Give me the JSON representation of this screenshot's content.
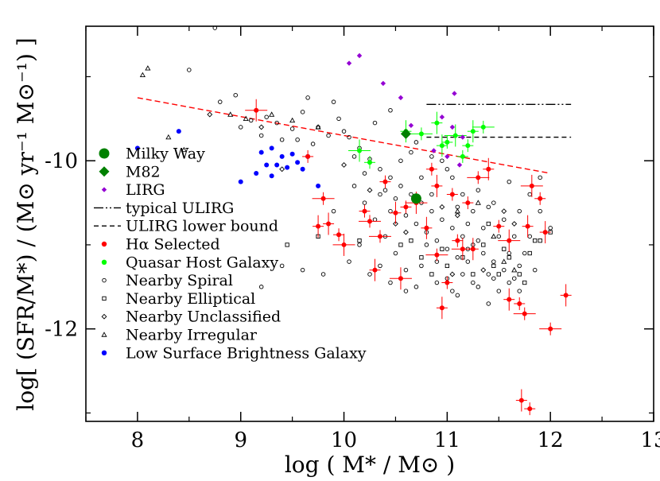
{
  "chart_data": {
    "type": "scatter",
    "xlabel": "log ( M* / M⊙ )",
    "ylabel": "log[ (SFR/M*) / (M⊙ yr⁻¹ M⊙⁻¹) ]",
    "xlim": [
      7.5,
      13
    ],
    "ylim": [
      -13.1,
      -8.4
    ],
    "x_ticks": [
      8,
      9,
      10,
      11,
      12,
      13
    ],
    "y_ticks": [
      -10,
      -12
    ],
    "grid": false,
    "legend_position": "left",
    "legend": [
      {
        "label": "Milky Way",
        "marker": "circle-large",
        "color": "#008000"
      },
      {
        "label": "M82",
        "marker": "diamond-large",
        "color": "#008000"
      },
      {
        "label": "LIRG",
        "marker": "diamond",
        "color": "#9400d3"
      },
      {
        "label": "typical ULIRG",
        "marker": "dash-dot-dot-line",
        "color": "#000000"
      },
      {
        "label": "ULIRG lower bound",
        "marker": "dashed-line",
        "color": "#000000"
      },
      {
        "label": "Hα Selected",
        "marker": "dot",
        "color": "#ff0000"
      },
      {
        "label": "Quasar Host Galaxy",
        "marker": "dot",
        "color": "#00ff00"
      },
      {
        "label": "Nearby Spiral",
        "marker": "open-circle",
        "color": "#000000"
      },
      {
        "label": "Nearby Elliptical",
        "marker": "open-square",
        "color": "#000000"
      },
      {
        "label": "Nearby Unclassified",
        "marker": "open-diamond",
        "color": "#000000"
      },
      {
        "label": "Nearby Irregular",
        "marker": "open-triangle",
        "color": "#000000"
      },
      {
        "label": "Low Surface Brightness Galaxy",
        "marker": "dot",
        "color": "#0000ff"
      }
    ],
    "lines": [
      {
        "style": "dashed",
        "color": "#ff0000",
        "points": [
          [
            8.0,
            -9.25
          ],
          [
            12.0,
            -10.15
          ]
        ]
      },
      {
        "label": "typical ULIRG",
        "style": "dash-dot-dot",
        "color": "#000000",
        "points": [
          [
            10.8,
            -9.33
          ],
          [
            12.2,
            -9.33
          ]
        ]
      },
      {
        "label": "ULIRG lower bound",
        "style": "dashed",
        "color": "#000000",
        "points": [
          [
            10.8,
            -9.72
          ],
          [
            12.2,
            -9.72
          ]
        ]
      }
    ],
    "series": [
      {
        "label": "Milky Way",
        "marker": "circle-large",
        "color": "#008000",
        "points": [
          [
            10.7,
            -10.45
          ]
        ]
      },
      {
        "label": "M82",
        "marker": "diamond-large",
        "color": "#008000",
        "points": [
          [
            10.6,
            -9.68
          ]
        ]
      },
      {
        "label": "LIRG",
        "marker": "diamond",
        "color": "#9400d3",
        "points": [
          [
            10.05,
            -8.84
          ],
          [
            10.15,
            -8.75
          ],
          [
            10.38,
            -9.08
          ],
          [
            10.55,
            -9.25
          ],
          [
            10.65,
            -9.58
          ],
          [
            10.95,
            -9.48
          ],
          [
            11.05,
            -9.6
          ],
          [
            11.15,
            -9.72
          ],
          [
            11.07,
            -9.2
          ],
          [
            10.87,
            -9.88
          ],
          [
            11.12,
            -10.05
          ],
          [
            11.0,
            -9.95
          ]
        ]
      },
      {
        "label": "Quasar Host Galaxy",
        "marker": "dot",
        "color": "#00ff00",
        "points": [
          [
            10.15,
            -9.88
          ],
          [
            10.25,
            -10.02
          ],
          [
            10.6,
            -9.65
          ],
          [
            10.75,
            -9.68
          ],
          [
            10.9,
            -9.55
          ],
          [
            11.0,
            -9.78
          ],
          [
            11.08,
            -9.7
          ],
          [
            11.15,
            -9.95
          ],
          [
            11.25,
            -9.65
          ],
          [
            11.35,
            -9.6
          ],
          [
            10.95,
            -9.82
          ],
          [
            11.2,
            -9.82
          ]
        ],
        "error_bars": true
      },
      {
        "label": "Hα Selected",
        "marker": "dot",
        "color": "#ff0000",
        "points": [
          [
            9.15,
            -9.4
          ],
          [
            9.65,
            -9.95
          ],
          [
            9.75,
            -10.78
          ],
          [
            9.8,
            -10.45
          ],
          [
            9.85,
            -10.75
          ],
          [
            9.95,
            -10.88
          ],
          [
            10.0,
            -11.0
          ],
          [
            10.2,
            -10.6
          ],
          [
            10.3,
            -11.3
          ],
          [
            10.35,
            -10.9
          ],
          [
            10.5,
            -10.62
          ],
          [
            10.6,
            -10.55
          ],
          [
            10.7,
            -10.5
          ],
          [
            10.85,
            -10.1
          ],
          [
            10.9,
            -10.3
          ],
          [
            10.9,
            -11.12
          ],
          [
            10.95,
            -11.75
          ],
          [
            11.1,
            -10.95
          ],
          [
            11.15,
            -11.05
          ],
          [
            11.2,
            -10.5
          ],
          [
            11.25,
            -11.05
          ],
          [
            11.3,
            -10.2
          ],
          [
            11.4,
            -10.1
          ],
          [
            11.5,
            -10.78
          ],
          [
            11.6,
            -10.95
          ],
          [
            11.7,
            -11.7
          ],
          [
            11.72,
            -12.85
          ],
          [
            11.75,
            -11.82
          ],
          [
            11.78,
            -10.78
          ],
          [
            11.8,
            -12.95
          ],
          [
            11.82,
            -10.3
          ],
          [
            11.9,
            -10.45
          ],
          [
            11.95,
            -10.85
          ],
          [
            12.0,
            -12.0
          ],
          [
            12.15,
            -11.6
          ],
          [
            10.4,
            -10.25
          ],
          [
            10.55,
            -11.4
          ],
          [
            11.0,
            -11.45
          ],
          [
            11.6,
            -11.65
          ],
          [
            10.25,
            -10.72
          ],
          [
            10.8,
            -10.8
          ],
          [
            11.05,
            -10.4
          ]
        ],
        "error_bars": true
      },
      {
        "label": "Low Surface Brightness Galaxy",
        "marker": "dot",
        "color": "#0000ff",
        "points": [
          [
            8.0,
            -9.85
          ],
          [
            8.4,
            -9.65
          ],
          [
            9.0,
            -10.25
          ],
          [
            9.15,
            -10.15
          ],
          [
            9.25,
            -10.05
          ],
          [
            9.3,
            -10.18
          ],
          [
            9.35,
            -10.05
          ],
          [
            9.4,
            -9.95
          ],
          [
            9.45,
            -10.08
          ],
          [
            9.5,
            -9.92
          ],
          [
            9.55,
            -10.02
          ],
          [
            9.6,
            -10.1
          ],
          [
            9.65,
            -9.95
          ],
          [
            9.75,
            -10.3
          ],
          [
            9.3,
            -9.85
          ],
          [
            9.2,
            -9.9
          ]
        ]
      },
      {
        "label": "Nearby Spiral",
        "marker": "open-circle",
        "color": "#000000",
        "points": [
          [
            8.5,
            -8.92
          ],
          [
            8.75,
            -8.42
          ],
          [
            8.95,
            -9.22
          ],
          [
            9.1,
            -9.52
          ],
          [
            9.25,
            -9.48
          ],
          [
            9.35,
            -9.55
          ],
          [
            9.5,
            -9.62
          ],
          [
            9.6,
            -9.42
          ],
          [
            9.75,
            -9.6
          ],
          [
            9.85,
            -9.7
          ],
          [
            9.95,
            -9.5
          ],
          [
            10.05,
            -9.72
          ],
          [
            10.15,
            -9.85
          ],
          [
            10.25,
            -9.98
          ],
          [
            10.35,
            -10.1
          ],
          [
            10.45,
            -10.2
          ],
          [
            10.55,
            -10.3
          ],
          [
            10.65,
            -10.4
          ],
          [
            10.75,
            -10.5
          ],
          [
            10.85,
            -10.6
          ],
          [
            10.95,
            -10.7
          ],
          [
            11.05,
            -10.8
          ],
          [
            11.15,
            -10.9
          ],
          [
            11.25,
            -11.0
          ],
          [
            11.35,
            -11.1
          ],
          [
            11.45,
            -11.2
          ],
          [
            11.55,
            -11.3
          ],
          [
            11.65,
            -11.4
          ],
          [
            10.1,
            -10.3
          ],
          [
            10.2,
            -10.5
          ],
          [
            10.3,
            -10.7
          ],
          [
            10.4,
            -10.9
          ],
          [
            10.5,
            -11.1
          ],
          [
            10.6,
            -11.3
          ],
          [
            10.7,
            -11.5
          ],
          [
            10.8,
            -11.0
          ],
          [
            10.9,
            -11.2
          ],
          [
            11.0,
            -11.4
          ],
          [
            11.1,
            -11.6
          ],
          [
            11.2,
            -11.2
          ],
          [
            11.3,
            -11.5
          ],
          [
            11.4,
            -11.7
          ],
          [
            11.5,
            -10.9
          ],
          [
            11.6,
            -11.1
          ],
          [
            11.7,
            -10.6
          ],
          [
            11.8,
            -10.4
          ],
          [
            11.9,
            -10.2
          ],
          [
            12.0,
            -10.8
          ],
          [
            10.05,
            -11.2
          ],
          [
            10.15,
            -11.0
          ],
          [
            10.35,
            -10.4
          ],
          [
            10.45,
            -10.6
          ],
          [
            10.55,
            -10.0
          ],
          [
            10.65,
            -9.9
          ],
          [
            10.75,
            -10.2
          ],
          [
            10.85,
            -10.4
          ],
          [
            10.95,
            -10.0
          ],
          [
            11.05,
            -10.2
          ],
          [
            11.15,
            -10.4
          ],
          [
            11.25,
            -10.6
          ],
          [
            11.35,
            -10.8
          ],
          [
            11.45,
            -10.5
          ],
          [
            11.55,
            -10.7
          ],
          [
            11.65,
            -10.9
          ],
          [
            11.75,
            -11.1
          ],
          [
            11.85,
            -11.3
          ],
          [
            9.9,
            -10.6
          ],
          [
            9.8,
            -11.35
          ],
          [
            9.4,
            -9.75
          ],
          [
            9.7,
            -9.8
          ],
          [
            9.9,
            -9.3
          ],
          [
            10.0,
            -9.65
          ],
          [
            10.3,
            -9.55
          ],
          [
            10.45,
            -9.4
          ],
          [
            10.7,
            -9.78
          ],
          [
            10.85,
            -9.95
          ],
          [
            11.0,
            -10.1
          ],
          [
            11.1,
            -10.55
          ],
          [
            11.2,
            -10.75
          ],
          [
            11.3,
            -10.35
          ],
          [
            11.4,
            -10.55
          ],
          [
            11.6,
            -10.25
          ],
          [
            10.25,
            -11.35
          ],
          [
            10.35,
            -11.25
          ],
          [
            10.45,
            -11.45
          ],
          [
            10.6,
            -11.55
          ],
          [
            10.75,
            -11.25
          ],
          [
            10.9,
            -11.45
          ],
          [
            11.05,
            -11.55
          ],
          [
            11.15,
            -11.35
          ],
          [
            11.25,
            -11.45
          ],
          [
            11.45,
            -11.4
          ],
          [
            11.7,
            -11.25
          ],
          [
            11.8,
            -10.9
          ],
          [
            11.9,
            -10.6
          ],
          [
            9.0,
            -9.6
          ],
          [
            9.2,
            -9.7
          ],
          [
            9.55,
            -9.75
          ],
          [
            10.1,
            -9.95
          ],
          [
            10.2,
            -10.15
          ],
          [
            10.4,
            -10.35
          ],
          [
            10.5,
            -10.45
          ],
          [
            10.6,
            -10.65
          ],
          [
            10.7,
            -10.75
          ],
          [
            10.8,
            -10.85
          ],
          [
            10.9,
            -10.95
          ],
          [
            11.0,
            -11.05
          ],
          [
            11.1,
            -11.15
          ],
          [
            11.2,
            -11.05
          ],
          [
            11.3,
            -10.95
          ],
          [
            11.4,
            -11.35
          ],
          [
            11.5,
            -11.55
          ],
          [
            11.6,
            -11.45
          ],
          [
            11.7,
            -11.55
          ],
          [
            9.2,
            -11.5
          ],
          [
            9.4,
            -11.25
          ],
          [
            9.6,
            -11.3
          ],
          [
            8.8,
            -9.3
          ],
          [
            9.65,
            -9.25
          ]
        ]
      },
      {
        "label": "Nearby Elliptical",
        "marker": "open-square",
        "color": "#000000",
        "points": [
          [
            9.45,
            -11.0
          ],
          [
            9.75,
            -10.9
          ],
          [
            10.15,
            -10.95
          ],
          [
            10.55,
            -11.0
          ],
          [
            10.65,
            -10.95
          ],
          [
            10.75,
            -11.15
          ],
          [
            10.85,
            -11.35
          ],
          [
            10.95,
            -11.05
          ],
          [
            11.0,
            -11.25
          ],
          [
            11.15,
            -11.15
          ],
          [
            11.25,
            -11.35
          ],
          [
            11.35,
            -11.0
          ],
          [
            11.45,
            -11.25
          ],
          [
            11.5,
            -11.35
          ],
          [
            11.6,
            -11.15
          ],
          [
            11.7,
            -11.35
          ],
          [
            11.75,
            -11.45
          ],
          [
            11.8,
            -11.1
          ],
          [
            11.85,
            -10.95
          ],
          [
            11.9,
            -10.95
          ],
          [
            12.0,
            -10.85
          ],
          [
            11.4,
            -10.75
          ],
          [
            11.55,
            -11.05
          ]
        ]
      },
      {
        "label": "Nearby Unclassified",
        "marker": "open-diamond",
        "color": "#000000",
        "points": [
          [
            8.7,
            -9.45
          ],
          [
            9.2,
            -9.6
          ],
          [
            9.4,
            -10.1
          ],
          [
            10.0,
            -10.05
          ],
          [
            10.25,
            -10.35
          ],
          [
            10.5,
            -10.75
          ],
          [
            10.6,
            -10.85
          ],
          [
            10.95,
            -10.55
          ],
          [
            11.1,
            -10.65
          ],
          [
            11.35,
            -11.3
          ],
          [
            11.55,
            -10.6
          ],
          [
            11.65,
            -10.75
          ],
          [
            11.05,
            -11.35
          ]
        ]
      },
      {
        "label": "Nearby Irregular",
        "marker": "open-triangle",
        "color": "#000000",
        "points": [
          [
            8.05,
            -8.98
          ],
          [
            8.1,
            -8.9
          ],
          [
            8.3,
            -9.72
          ],
          [
            8.45,
            -9.87
          ],
          [
            8.9,
            -9.45
          ],
          [
            9.05,
            -9.5
          ],
          [
            9.3,
            -9.45
          ],
          [
            9.5,
            -9.52
          ],
          [
            9.75,
            -9.6
          ],
          [
            11.1,
            -10.6
          ],
          [
            11.3,
            -10.5
          ],
          [
            11.45,
            -10.9
          ],
          [
            11.55,
            -11.2
          ],
          [
            11.65,
            -11.3
          ]
        ]
      }
    ]
  }
}
